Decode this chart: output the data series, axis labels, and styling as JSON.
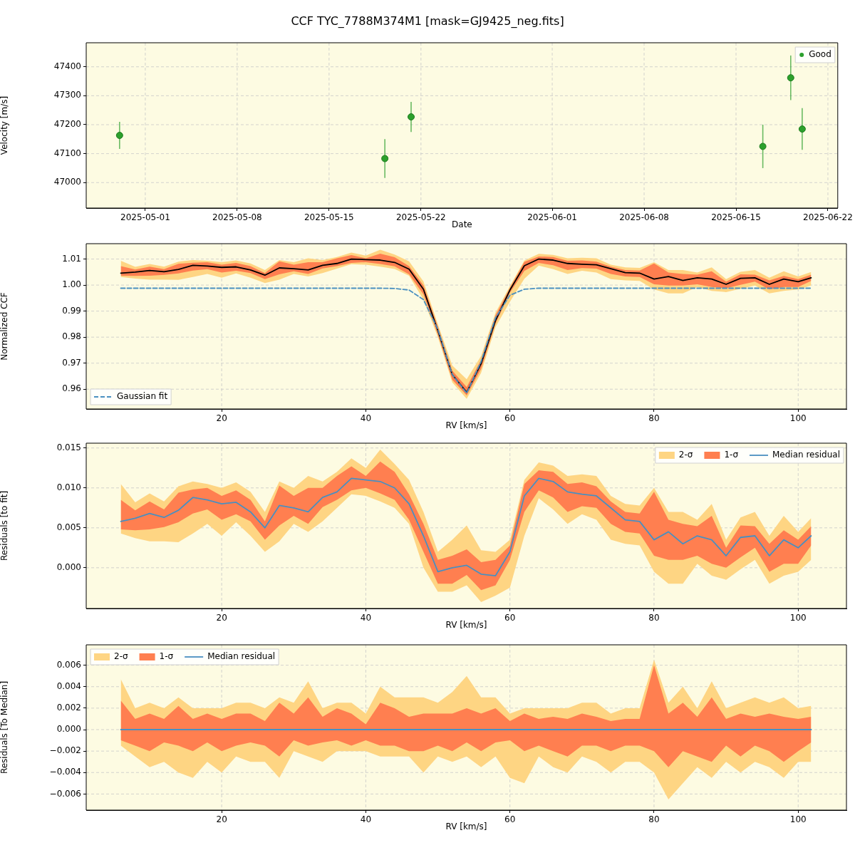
{
  "chart_data": [
    {
      "type": "scatter",
      "title": "CCF TYC_7788M374M1 [mask=GJ9425_neg.fits]",
      "xlabel": "Date",
      "ylabel": "Velocity [m/s]",
      "xlim": [
        "2025-04-26T12:00",
        "2025-06-22T18:00"
      ],
      "xticks": [
        "2025-05-01",
        "2025-05-08",
        "2025-05-15",
        "2025-05-22",
        "2025-06-01",
        "2025-06-08",
        "2025-06-15",
        "2025-06-22"
      ],
      "ylim": [
        46912,
        47483
      ],
      "yticks": [
        47000,
        47100,
        47200,
        47300,
        47400
      ],
      "grid": true,
      "legend": "top right",
      "marker": "circle",
      "series": [
        {
          "name": "Good",
          "color": "#2ca02c",
          "x": [
            "2025-04-29T01:00",
            "2025-05-19T06:00",
            "2025-05-21T06:00",
            "2025-06-17T01:00",
            "2025-06-19T04:00",
            "2025-06-20T01:00"
          ],
          "values": [
            47163,
            47083,
            47227,
            47125,
            47362,
            47185
          ],
          "errors": [
            47,
            67,
            52,
            75,
            77,
            72
          ]
        }
      ]
    },
    {
      "type": "line",
      "xlabel": "RV [km/s]",
      "ylabel": "Normalized CCF",
      "xlim": [
        1.2,
        106.7
      ],
      "xticks": [
        20,
        40,
        60,
        80,
        100
      ],
      "ylim": [
        0.9524,
        1.0159
      ],
      "yticks": [
        {
          "value": 0.96,
          "label": "0.96"
        },
        {
          "value": 0.97,
          "label": "0.97"
        },
        {
          "value": 0.98,
          "label": "0.98"
        },
        {
          "value": 0.99,
          "label": "0.99"
        },
        {
          "value": 1.0,
          "label": "1.00"
        },
        {
          "value": 1.01,
          "label": "1.01"
        }
      ],
      "grid": true,
      "legend": "bottom left",
      "x": [
        6,
        8,
        10,
        12,
        14,
        16,
        18,
        20,
        22,
        24,
        26,
        28,
        30,
        32,
        34,
        36,
        38,
        40,
        42,
        44,
        46,
        48,
        50,
        52,
        54,
        56,
        58,
        60,
        62,
        64,
        66,
        68,
        70,
        72,
        74,
        76,
        78,
        80,
        82,
        84,
        86,
        88,
        90,
        92,
        94,
        96,
        98,
        100,
        101.8
      ],
      "series": [
        {
          "color": "#fed583",
          "values": [
            null,
            null,
            null,
            null,
            null,
            null,
            null,
            null,
            null,
            null,
            null,
            null,
            null,
            null,
            null,
            null,
            null,
            null,
            null,
            null,
            null,
            null,
            null,
            null,
            null,
            null,
            null,
            null,
            null,
            null,
            null,
            null,
            null,
            null,
            null,
            null,
            null,
            null,
            null,
            null,
            null,
            null,
            null,
            null,
            null,
            null,
            null,
            null,
            null
          ],
          "upper": [
            1.0093,
            1.007,
            1.0081,
            1.0071,
            1.009,
            1.0096,
            1.0093,
            1.0088,
            1.0095,
            1.0083,
            1.0058,
            1.0096,
            1.0088,
            1.0103,
            1.0096,
            1.0108,
            1.0125,
            1.0113,
            1.0136,
            1.0117,
            1.0091,
            1.0014,
            0.985,
            0.9691,
            0.9638,
            0.9728,
            0.9894,
            0.9996,
            1.0094,
            1.012,
            1.0116,
            1.0103,
            1.0105,
            1.0103,
            1.0078,
            1.0068,
            1.0066,
            1.0088,
            1.0058,
            1.0058,
            1.0048,
            1.0068,
            1.0023,
            1.0051,
            1.0058,
            1.0028,
            1.0053,
            1.0033,
            1.005
          ],
          "lower": [
            1.0031,
            1.0025,
            1.0021,
            1.0021,
            1.002,
            1.0031,
            1.0043,
            1.0028,
            1.0045,
            1.0028,
            1.0008,
            1.0021,
            1.0043,
            1.0033,
            1.0046,
            1.0063,
            1.008,
            1.0078,
            1.0071,
            1.0062,
            1.0036,
            0.9944,
            0.98,
            0.9626,
            0.9563,
            0.9663,
            0.9839,
            0.9936,
            1.0024,
            1.0075,
            1.0061,
            1.0043,
            1.0055,
            1.0048,
            1.0023,
            1.0018,
            1.0016,
            0.9983,
            0.9968,
            0.9968,
            0.9993,
            0.9978,
            0.9973,
            0.9986,
            0.9998,
            0.9968,
            0.9978,
            0.9983,
            0.9998
          ]
        },
        {
          "color": "#ff7f50",
          "values": [
            null,
            null,
            null,
            null,
            null,
            null,
            null,
            null,
            null,
            null,
            null,
            null,
            null,
            null,
            null,
            null,
            null,
            null,
            null,
            null,
            null,
            null,
            null,
            null,
            null,
            null,
            null,
            null,
            null,
            null,
            null,
            null,
            null,
            null,
            null,
            null,
            null,
            null,
            null,
            null,
            null,
            null,
            null,
            null,
            null,
            null,
            null,
            null,
            null
          ],
          "upper": [
            1.0073,
            1.006,
            1.0071,
            1.0061,
            1.0082,
            1.0086,
            1.0088,
            1.0078,
            1.0085,
            1.0073,
            1.0046,
            1.0091,
            1.0078,
            1.0088,
            1.0088,
            1.0103,
            1.0115,
            1.0103,
            1.0121,
            1.0107,
            1.0073,
            0.9999,
            0.984,
            0.9671,
            0.9608,
            0.9713,
            0.9884,
            0.9989,
            1.0089,
            1.011,
            1.0108,
            1.0093,
            1.0095,
            1.009,
            1.0071,
            1.0058,
            1.0056,
            1.0083,
            1.0048,
            1.0043,
            1.004,
            1.0053,
            1.0013,
            1.0041,
            1.004,
            1.0018,
            1.0035,
            1.0023,
            1.004
          ],
          "lower": [
            1.0036,
            1.0035,
            1.0036,
            1.0039,
            1.0045,
            1.0056,
            1.0061,
            1.0048,
            1.0055,
            1.0046,
            1.0023,
            1.0041,
            1.0053,
            1.0043,
            1.0064,
            1.0073,
            1.0085,
            1.0088,
            1.0081,
            1.0072,
            1.0041,
            0.9964,
            0.981,
            0.9636,
            0.9576,
            0.9678,
            0.9852,
            0.9971,
            1.0054,
            1.0085,
            1.0076,
            1.0058,
            1.0065,
            1.0063,
            1.0043,
            1.0033,
            1.0031,
            1.0003,
            0.9998,
            0.9998,
            1.0003,
            0.9993,
            0.9988,
            1.0001,
            1.0013,
            0.9983,
            0.9993,
            0.9993,
            1.0016
          ]
        },
        {
          "color": "#000000",
          "values": [
            1.0046,
            1.005,
            1.0056,
            1.0051,
            1.006,
            1.0076,
            1.0073,
            1.0068,
            1.007,
            1.0058,
            1.0038,
            1.0066,
            1.0063,
            1.0058,
            1.0076,
            1.0083,
            1.01,
            1.0098,
            1.0096,
            1.0087,
            1.0061,
            0.9984,
            0.9825,
            0.9656,
            0.9588,
            0.9698,
            0.9864,
            0.9981,
            1.0074,
            1.01,
            1.0096,
            1.0083,
            1.008,
            1.0078,
            1.0063,
            1.0048,
            1.0046,
            1.0023,
            1.0033,
            1.0018,
            1.0028,
            1.0023,
            1.0003,
            1.0026,
            1.0028,
            1.0003,
            1.0023,
            1.0013,
            1.0028
          ]
        },
        {
          "name": "Gaussian fit",
          "color": "#4a90c0",
          "line_style": "dashed",
          "values": [
            0.9988,
            0.9988,
            0.9988,
            0.9988,
            0.9988,
            0.9988,
            0.9988,
            0.9988,
            0.9988,
            0.9988,
            0.9988,
            0.9988,
            0.9988,
            0.9988,
            0.9988,
            0.9988,
            0.9988,
            0.9988,
            0.9988,
            0.9987,
            0.9981,
            0.9944,
            0.983,
            0.9656,
            0.9585,
            0.9706,
            0.9874,
            0.9961,
            0.9984,
            0.9988,
            0.9988,
            0.9988,
            0.9988,
            0.9988,
            0.9988,
            0.9988,
            0.9988,
            0.9988,
            0.9988,
            0.9988,
            0.9988,
            0.9988,
            0.9988,
            0.9988,
            0.9988,
            0.9988,
            0.9988,
            0.9988,
            0.9988
          ]
        }
      ]
    },
    {
      "type": "line",
      "xlabel": "RV [km/s]",
      "ylabel": "Residuals [to fit]",
      "xlim": [
        1.2,
        106.7
      ],
      "xticks": [
        20,
        40,
        60,
        80,
        100
      ],
      "ylim": [
        -0.0051,
        0.0156
      ],
      "yticks": [
        {
          "value": 0,
          "label": "0.000"
        },
        {
          "value": 0.005,
          "label": "0.005"
        },
        {
          "value": 0.01,
          "label": "0.010"
        },
        {
          "value": 0.015,
          "label": "0.015"
        }
      ],
      "grid": true,
      "legend": "top right",
      "x": [
        6,
        8,
        10,
        12,
        14,
        16,
        18,
        20,
        22,
        24,
        26,
        28,
        30,
        32,
        34,
        36,
        38,
        40,
        42,
        44,
        46,
        48,
        50,
        52,
        54,
        56,
        58,
        60,
        62,
        64,
        66,
        68,
        70,
        72,
        74,
        76,
        78,
        80,
        82,
        84,
        86,
        88,
        90,
        92,
        94,
        96,
        98,
        100,
        101.8
      ],
      "series": [
        {
          "name": "2-σ",
          "color": "#fed583",
          "values": [
            null,
            null,
            null,
            null,
            null,
            null,
            null,
            null,
            null,
            null,
            null,
            null,
            null,
            null,
            null,
            null,
            null,
            null,
            null,
            null,
            null,
            null,
            null,
            null,
            null,
            null,
            null,
            null,
            null,
            null,
            null,
            null,
            null,
            null,
            null,
            null,
            null,
            null,
            null,
            null,
            null,
            null,
            null,
            null,
            null,
            null,
            null,
            null,
            null
          ],
          "upper": [
            0.0105,
            0.0082,
            0.0093,
            0.0083,
            0.0102,
            0.0108,
            0.0105,
            0.01,
            0.0107,
            0.0095,
            0.007,
            0.0108,
            0.01,
            0.0115,
            0.0108,
            0.012,
            0.0137,
            0.0125,
            0.0148,
            0.013,
            0.011,
            0.007,
            0.002,
            0.0035,
            0.0053,
            0.0022,
            0.002,
            0.0035,
            0.011,
            0.0132,
            0.0128,
            0.0115,
            0.0117,
            0.0115,
            0.009,
            0.008,
            0.0078,
            0.01,
            0.007,
            0.007,
            0.006,
            0.008,
            0.0035,
            0.0063,
            0.007,
            0.004,
            0.0065,
            0.0045,
            0.0062
          ],
          "lower": [
            0.0043,
            0.0037,
            0.0033,
            0.0033,
            0.0032,
            0.0043,
            0.0055,
            0.004,
            0.0057,
            0.004,
            0.002,
            0.0033,
            0.0055,
            0.0045,
            0.0058,
            0.0075,
            0.0092,
            0.009,
            0.0083,
            0.0075,
            0.0055,
            0.0,
            -0.003,
            -0.003,
            -0.0022,
            -0.0043,
            -0.0035,
            -0.0025,
            0.004,
            0.0087,
            0.0073,
            0.0055,
            0.0067,
            0.006,
            0.0035,
            0.003,
            0.0028,
            -0.0005,
            -0.002,
            -0.002,
            0.0005,
            -0.001,
            -0.0015,
            -0.0002,
            0.001,
            -0.002,
            -0.001,
            -0.0005,
            0.001
          ]
        },
        {
          "name": "1-σ",
          "color": "#ff7f50",
          "values": [
            null,
            null,
            null,
            null,
            null,
            null,
            null,
            null,
            null,
            null,
            null,
            null,
            null,
            null,
            null,
            null,
            null,
            null,
            null,
            null,
            null,
            null,
            null,
            null,
            null,
            null,
            null,
            null,
            null,
            null,
            null,
            null,
            null,
            null,
            null,
            null,
            null,
            null,
            null,
            null,
            null,
            null,
            null,
            null,
            null,
            null,
            null,
            null,
            null
          ],
          "upper": [
            0.0085,
            0.0072,
            0.0083,
            0.0073,
            0.0094,
            0.0098,
            0.01,
            0.009,
            0.0097,
            0.0085,
            0.0058,
            0.0103,
            0.009,
            0.01,
            0.01,
            0.0115,
            0.0127,
            0.0115,
            0.0133,
            0.012,
            0.0092,
            0.0055,
            0.001,
            0.0015,
            0.0023,
            0.0007,
            0.001,
            0.0028,
            0.0105,
            0.0122,
            0.012,
            0.0105,
            0.0107,
            0.0102,
            0.0083,
            0.007,
            0.0068,
            0.0095,
            0.006,
            0.0055,
            0.0052,
            0.0065,
            0.0025,
            0.0053,
            0.0052,
            0.003,
            0.0047,
            0.0035,
            0.0052
          ],
          "lower": [
            0.0048,
            0.0047,
            0.0048,
            0.0051,
            0.0057,
            0.0068,
            0.0073,
            0.006,
            0.0067,
            0.0058,
            0.0035,
            0.0053,
            0.0065,
            0.0055,
            0.0076,
            0.0085,
            0.0097,
            0.01,
            0.0093,
            0.0085,
            0.006,
            0.002,
            -0.002,
            -0.002,
            -0.0009,
            -0.0028,
            -0.0022,
            0.001,
            0.007,
            0.0097,
            0.0088,
            0.007,
            0.0077,
            0.0075,
            0.0055,
            0.0045,
            0.0043,
            0.0015,
            0.001,
            0.001,
            0.0015,
            0.0005,
            0.0,
            0.0013,
            0.0025,
            -0.0005,
            0.0005,
            0.0005,
            0.0028
          ]
        },
        {
          "name": "Median residual",
          "color": "#4a8fc0",
          "values": [
            0.0058,
            0.0062,
            0.0068,
            0.0063,
            0.0072,
            0.0088,
            0.0085,
            0.008,
            0.0082,
            0.007,
            0.005,
            0.0078,
            0.0075,
            0.007,
            0.0088,
            0.0095,
            0.0112,
            0.011,
            0.0108,
            0.01,
            0.008,
            0.004,
            -0.0005,
            0.0,
            0.0003,
            -0.0008,
            -0.001,
            0.002,
            0.009,
            0.0112,
            0.0108,
            0.0095,
            0.0092,
            0.009,
            0.0075,
            0.006,
            0.0058,
            0.0035,
            0.0045,
            0.003,
            0.004,
            0.0035,
            0.0015,
            0.0038,
            0.004,
            0.0015,
            0.0035,
            0.0025,
            0.004
          ]
        }
      ]
    },
    {
      "type": "line",
      "xlabel": "RV [km/s]",
      "ylabel": "Residuals [To Median]",
      "xlim": [
        1.2,
        106.7
      ],
      "xticks": [
        20,
        40,
        60,
        80,
        100
      ],
      "ylim": [
        -0.0075,
        0.0079
      ],
      "yticks": [
        {
          "value": -0.006,
          "label": "−0.006"
        },
        {
          "value": -0.004,
          "label": "−0.004"
        },
        {
          "value": -0.002,
          "label": "−0.002"
        },
        {
          "value": 0,
          "label": "0.000"
        },
        {
          "value": 0.002,
          "label": "0.002"
        },
        {
          "value": 0.004,
          "label": "0.004"
        },
        {
          "value": 0.006,
          "label": "0.006"
        }
      ],
      "grid": true,
      "legend": "top left",
      "x": [
        6,
        8,
        10,
        12,
        14,
        16,
        18,
        20,
        22,
        24,
        26,
        28,
        30,
        32,
        34,
        36,
        38,
        40,
        42,
        44,
        46,
        48,
        50,
        52,
        54,
        56,
        58,
        60,
        62,
        64,
        66,
        68,
        70,
        72,
        74,
        76,
        78,
        80,
        82,
        84,
        86,
        88,
        90,
        92,
        94,
        96,
        98,
        100,
        101.8
      ],
      "series": [
        {
          "name": "2-σ",
          "color": "#fed583",
          "values": [
            null,
            null,
            null,
            null,
            null,
            null,
            null,
            null,
            null,
            null,
            null,
            null,
            null,
            null,
            null,
            null,
            null,
            null,
            null,
            null,
            null,
            null,
            null,
            null,
            null,
            null,
            null,
            null,
            null,
            null,
            null,
            null,
            null,
            null,
            null,
            null,
            null,
            null,
            null,
            null,
            null,
            null,
            null,
            null,
            null,
            null,
            null,
            null,
            null
          ],
          "upper": [
            0.0047,
            0.002,
            0.0025,
            0.002,
            0.003,
            0.002,
            0.002,
            0.002,
            0.0025,
            0.0025,
            0.002,
            0.003,
            0.0025,
            0.0045,
            0.002,
            0.0025,
            0.0025,
            0.0015,
            0.004,
            0.003,
            0.003,
            0.003,
            0.0025,
            0.0035,
            0.005,
            0.003,
            0.003,
            0.0015,
            0.002,
            0.002,
            0.002,
            0.002,
            0.0025,
            0.0025,
            0.0015,
            0.002,
            0.002,
            0.0065,
            0.0025,
            0.004,
            0.002,
            0.0045,
            0.002,
            0.0025,
            0.003,
            0.0025,
            0.003,
            0.002,
            0.0022
          ],
          "lower": [
            -0.0015,
            -0.0025,
            -0.0035,
            -0.003,
            -0.004,
            -0.0045,
            -0.003,
            -0.004,
            -0.0025,
            -0.003,
            -0.003,
            -0.0045,
            -0.002,
            -0.0025,
            -0.003,
            -0.002,
            -0.002,
            -0.002,
            -0.0025,
            -0.0025,
            -0.0025,
            -0.004,
            -0.0025,
            -0.003,
            -0.0025,
            -0.0035,
            -0.0025,
            -0.0045,
            -0.005,
            -0.0025,
            -0.0035,
            -0.004,
            -0.0025,
            -0.003,
            -0.004,
            -0.003,
            -0.003,
            -0.004,
            -0.0065,
            -0.005,
            -0.0035,
            -0.0045,
            -0.003,
            -0.004,
            -0.003,
            -0.0035,
            -0.0045,
            -0.003,
            -0.003
          ]
        },
        {
          "name": "1-σ",
          "color": "#ff7f50",
          "values": [
            null,
            null,
            null,
            null,
            null,
            null,
            null,
            null,
            null,
            null,
            null,
            null,
            null,
            null,
            null,
            null,
            null,
            null,
            null,
            null,
            null,
            null,
            null,
            null,
            null,
            null,
            null,
            null,
            null,
            null,
            null,
            null,
            null,
            null,
            null,
            null,
            null,
            null,
            null,
            null,
            null,
            null,
            null,
            null,
            null,
            null,
            null,
            null,
            null
          ],
          "upper": [
            0.0027,
            0.001,
            0.0015,
            0.001,
            0.0022,
            0.001,
            0.0015,
            0.001,
            0.0015,
            0.0015,
            0.0008,
            0.0025,
            0.0015,
            0.003,
            0.0012,
            0.002,
            0.0015,
            0.0005,
            0.0025,
            0.002,
            0.0012,
            0.0015,
            0.0015,
            0.0015,
            0.002,
            0.0015,
            0.002,
            0.0008,
            0.0015,
            0.001,
            0.0012,
            0.001,
            0.0015,
            0.0012,
            0.0008,
            0.001,
            0.001,
            0.006,
            0.0015,
            0.0025,
            0.0012,
            0.003,
            0.001,
            0.0015,
            0.0012,
            0.0015,
            0.0012,
            0.001,
            0.0012
          ],
          "lower": [
            -0.001,
            -0.0015,
            -0.002,
            -0.0012,
            -0.0015,
            -0.002,
            -0.0012,
            -0.002,
            -0.0015,
            -0.0012,
            -0.0015,
            -0.0025,
            -0.001,
            -0.0015,
            -0.0012,
            -0.001,
            -0.0015,
            -0.001,
            -0.0015,
            -0.0015,
            -0.002,
            -0.002,
            -0.0015,
            -0.002,
            -0.0012,
            -0.002,
            -0.0012,
            -0.001,
            -0.002,
            -0.0015,
            -0.002,
            -0.0025,
            -0.0015,
            -0.0015,
            -0.002,
            -0.0015,
            -0.0015,
            -0.002,
            -0.0035,
            -0.002,
            -0.0025,
            -0.003,
            -0.0015,
            -0.0025,
            -0.0015,
            -0.002,
            -0.003,
            -0.002,
            -0.0012
          ]
        },
        {
          "name": "Median residual",
          "color": "#4a8fc0",
          "values": [
            0,
            0,
            0,
            0,
            0,
            0,
            0,
            0,
            0,
            0,
            0,
            0,
            0,
            0,
            0,
            0,
            0,
            0,
            0,
            0,
            0,
            0,
            0,
            0,
            0,
            0,
            0,
            0,
            0,
            0,
            0,
            0,
            0,
            0,
            0,
            0,
            0,
            0,
            0,
            0,
            0,
            0,
            0,
            0,
            0,
            0,
            0,
            0,
            0
          ]
        }
      ]
    }
  ]
}
